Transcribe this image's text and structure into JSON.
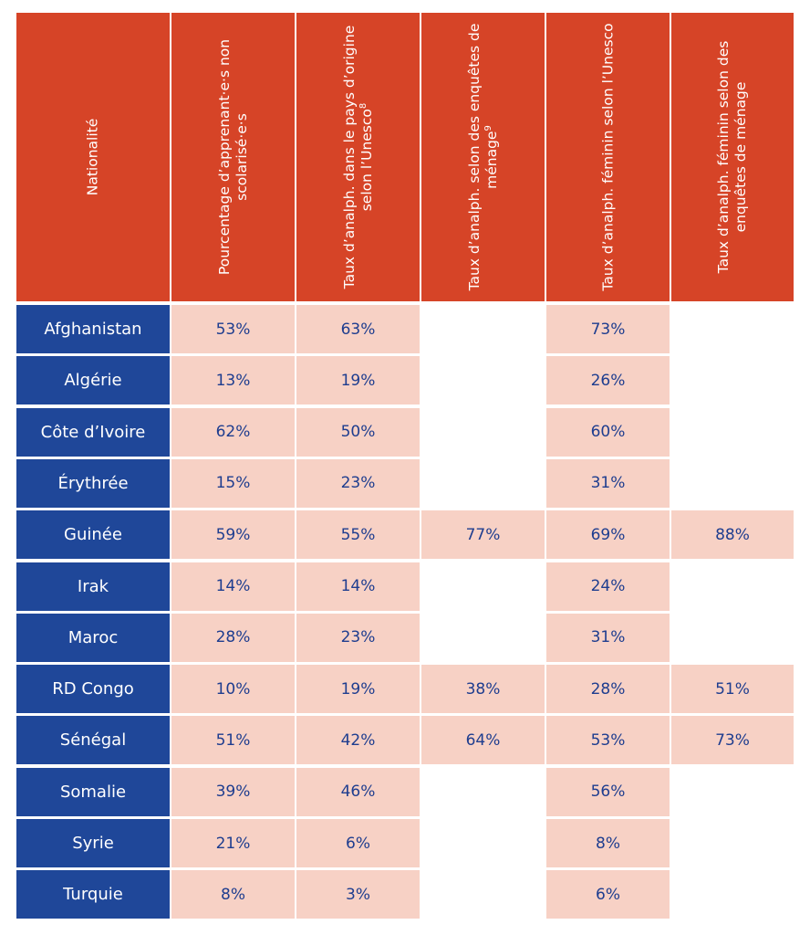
{
  "headers": [
    {
      "label": "Nationalité"
    },
    {
      "label": "Pourcentage d’apprenant·e·s non scolarisé·e·s"
    },
    {
      "label": "Taux d’analph. dans le pays d’origine selon l’Unesco",
      "sup": "8"
    },
    {
      "label": "Taux d’analph. selon des enquêtes de ménage",
      "sup": "9"
    },
    {
      "label": "Taux d’analph. féminin selon l’Unesco"
    },
    {
      "label": "Taux d’analph. féminin selon des enquêtes de ménage"
    }
  ],
  "rows": [
    {
      "nationality": "Afghanistan",
      "values": [
        "53%",
        "63%",
        "",
        "73%",
        ""
      ]
    },
    {
      "nationality": "Algérie",
      "values": [
        "13%",
        "19%",
        "",
        "26%",
        ""
      ]
    },
    {
      "nationality": "Côte d’Ivoire",
      "values": [
        "62%",
        "50%",
        "",
        "60%",
        ""
      ]
    },
    {
      "nationality": "Érythrée",
      "values": [
        "15%",
        "23%",
        "",
        "31%",
        ""
      ]
    },
    {
      "nationality": "Guinée",
      "values": [
        "59%",
        "55%",
        "77%",
        "69%",
        "88%"
      ]
    },
    {
      "nationality": "Irak",
      "values": [
        "14%",
        "14%",
        "",
        "24%",
        ""
      ]
    },
    {
      "nationality": "Maroc",
      "values": [
        "28%",
        "23%",
        "",
        "31%",
        ""
      ]
    },
    {
      "nationality": "RD Congo",
      "values": [
        "10%",
        "19%",
        "38%",
        "28%",
        "51%"
      ]
    },
    {
      "nationality": "Sénégal",
      "values": [
        "51%",
        "42%",
        "64%",
        "53%",
        "73%"
      ]
    },
    {
      "nationality": "Somalie",
      "values": [
        "39%",
        "46%",
        "",
        "56%",
        ""
      ]
    },
    {
      "nationality": "Syrie",
      "values": [
        "21%",
        "6%",
        "",
        "8%",
        ""
      ]
    },
    {
      "nationality": "Turquie",
      "values": [
        "8%",
        "3%",
        "",
        "6%",
        ""
      ]
    }
  ],
  "colors": {
    "header": "#d64427",
    "nationality": "#1f4799",
    "value_cell": "#f7d1c5",
    "value_text": "#1e3d8f"
  }
}
